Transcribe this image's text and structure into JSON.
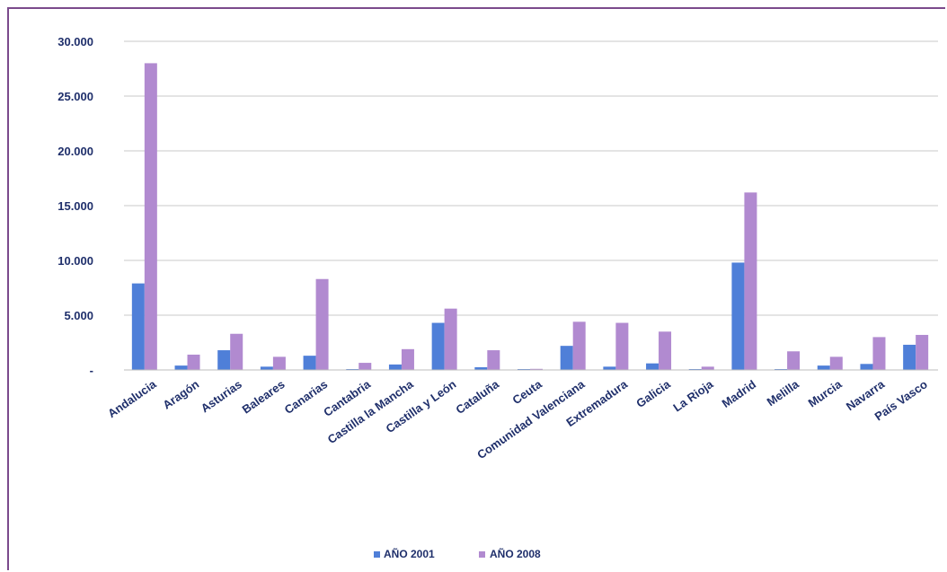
{
  "chart_data": {
    "type": "bar",
    "title": "",
    "xlabel": "",
    "ylabel": "",
    "ylim": [
      0,
      30000
    ],
    "yticks": [
      0,
      5000,
      10000,
      15000,
      20000,
      25000,
      30000
    ],
    "ytick_labels": [
      "-",
      "5.000",
      "10.000",
      "15.000",
      "20.000",
      "25.000",
      "30.000"
    ],
    "grid": true,
    "legend_position": "bottom",
    "categories": [
      "Andalucia",
      "Aragón",
      "Asturias",
      "Baleares",
      "Canarias",
      "Cantabria",
      "Castilla la Mancha",
      "Castilla y León",
      "Cataluña",
      "Ceuta",
      "Comunidad Valenciana",
      "Extremadura",
      "Galicia",
      "La Rioja",
      "Madrid",
      "Melilla",
      "Murcia",
      "Navarra",
      "País Vasco"
    ],
    "series": [
      {
        "name": "AÑO 2001",
        "color": "#4f7fd8",
        "values": [
          7900,
          400,
          1800,
          300,
          1300,
          50,
          500,
          4300,
          250,
          30,
          2200,
          300,
          600,
          80,
          9800,
          60,
          400,
          550,
          2300
        ]
      },
      {
        "name": "AÑO 2008",
        "color": "#b18ad0",
        "values": [
          28000,
          1400,
          3300,
          1200,
          8300,
          650,
          1900,
          5600,
          1800,
          100,
          4400,
          4300,
          3500,
          300,
          16200,
          1700,
          1200,
          3000,
          3200
        ]
      }
    ]
  }
}
